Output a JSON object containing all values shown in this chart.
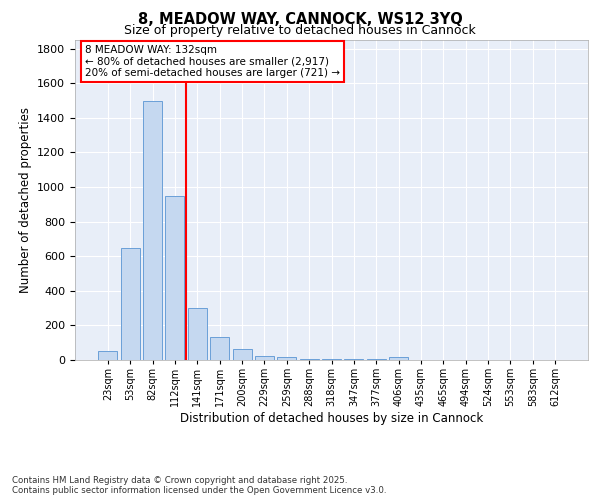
{
  "title_line1": "8, MEADOW WAY, CANNOCK, WS12 3YQ",
  "title_line2": "Size of property relative to detached houses in Cannock",
  "xlabel": "Distribution of detached houses by size in Cannock",
  "ylabel": "Number of detached properties",
  "bar_labels": [
    "23sqm",
    "53sqm",
    "82sqm",
    "112sqm",
    "141sqm",
    "171sqm",
    "200sqm",
    "229sqm",
    "259sqm",
    "288sqm",
    "318sqm",
    "347sqm",
    "377sqm",
    "406sqm",
    "435sqm",
    "465sqm",
    "494sqm",
    "524sqm",
    "553sqm",
    "583sqm",
    "612sqm"
  ],
  "bar_values": [
    50,
    650,
    1500,
    950,
    300,
    135,
    65,
    25,
    15,
    5,
    5,
    5,
    5,
    15,
    0,
    0,
    0,
    0,
    0,
    0,
    0
  ],
  "bar_color": "#c5d8f0",
  "bar_edge_color": "#6a9fd8",
  "vline_color": "red",
  "annotation_text": "8 MEADOW WAY: 132sqm\n← 80% of detached houses are smaller (2,917)\n20% of semi-detached houses are larger (721) →",
  "annotation_box_color": "white",
  "annotation_box_edge_color": "red",
  "ylim": [
    0,
    1850
  ],
  "yticks": [
    0,
    200,
    400,
    600,
    800,
    1000,
    1200,
    1400,
    1600,
    1800
  ],
  "bg_color": "#e8eef8",
  "footnote": "Contains HM Land Registry data © Crown copyright and database right 2025.\nContains public sector information licensed under the Open Government Licence v3.0.",
  "grid_color": "white",
  "vline_pos": 3.5
}
